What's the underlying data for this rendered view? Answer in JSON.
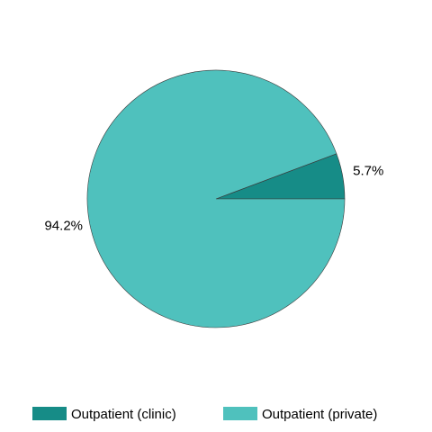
{
  "chart_data": {
    "type": "pie",
    "categories": [
      "Outpatient (clinic)",
      "Outpatient (private)"
    ],
    "values": [
      5.7,
      94.2
    ],
    "value_labels": [
      "5.7%",
      "94.2%"
    ],
    "colors": [
      "#168c87",
      "#4fc1bd"
    ],
    "legend": "bottom"
  }
}
